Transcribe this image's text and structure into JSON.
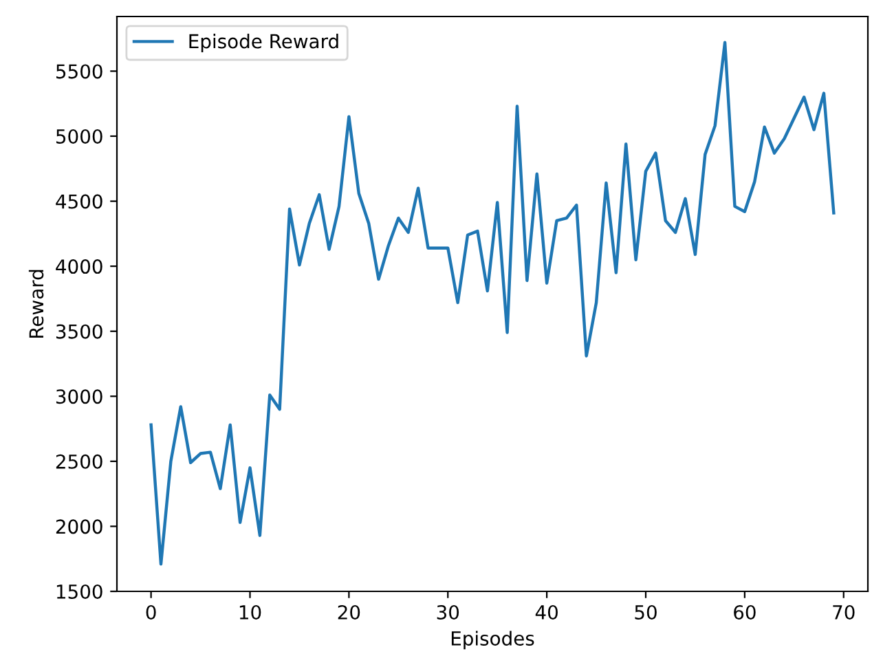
{
  "chart_data": {
    "type": "line",
    "xlabel": "Episodes",
    "ylabel": "Reward",
    "x": [
      0,
      1,
      2,
      3,
      4,
      5,
      6,
      7,
      8,
      9,
      10,
      11,
      12,
      13,
      14,
      15,
      16,
      17,
      18,
      19,
      20,
      21,
      22,
      23,
      24,
      25,
      26,
      27,
      28,
      29,
      30,
      31,
      32,
      33,
      34,
      35,
      36,
      37,
      38,
      39,
      40,
      41,
      42,
      43,
      44,
      45,
      46,
      47,
      48,
      49,
      50,
      51,
      52,
      53,
      54,
      55,
      56,
      57,
      58,
      59,
      60,
      61,
      62,
      63,
      64,
      65,
      66,
      67,
      68,
      69
    ],
    "series": [
      {
        "name": "Episode Reward",
        "color": "#1f77b4",
        "values": [
          2780,
          1710,
          2500,
          2920,
          2490,
          2560,
          2570,
          2290,
          2780,
          2030,
          2450,
          1930,
          3010,
          2900,
          4440,
          4010,
          4330,
          4550,
          4130,
          4460,
          5150,
          4560,
          4330,
          3900,
          4160,
          4370,
          4260,
          4600,
          4140,
          4140,
          4140,
          3720,
          4240,
          4270,
          3810,
          4490,
          3490,
          5230,
          3890,
          4710,
          3870,
          4350,
          4370,
          4470,
          3310,
          3720,
          4640,
          3950,
          4940,
          4050,
          4730,
          4870,
          4350,
          4260,
          4520,
          4090,
          4860,
          5080,
          5720,
          4460,
          4420,
          4650,
          5070,
          4870,
          4980,
          5140,
          5300,
          5050,
          5330,
          4410
        ]
      }
    ],
    "xlim": [
      -3.45,
      72.45
    ],
    "xticks": [
      0,
      10,
      20,
      30,
      40,
      50,
      60,
      70
    ],
    "ylim": [
      1500,
      5920
    ],
    "yticks": [
      1500,
      2000,
      2500,
      3000,
      3500,
      4000,
      4500,
      5000,
      5500
    ],
    "grid": false,
    "legend": "top left",
    "marker": "none",
    "line_style": "solid"
  }
}
